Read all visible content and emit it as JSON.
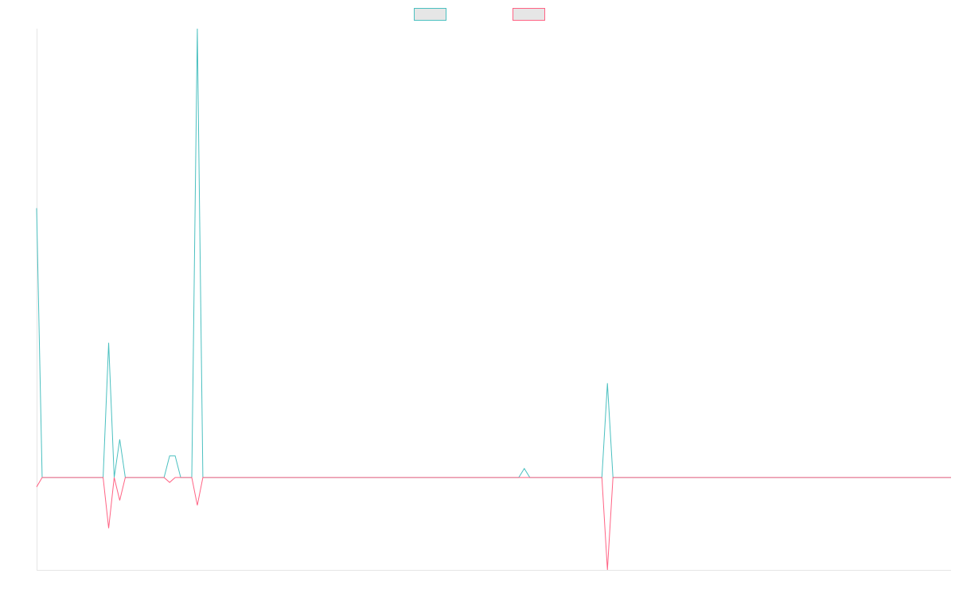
{
  "chart_data": {
    "type": "line",
    "xlim": [
      0,
      165
    ],
    "ylim": [
      -20.6,
      100
    ],
    "series": [
      {
        "color": "#4bc0c0",
        "values": [
          60,
          0,
          0,
          0,
          0,
          0,
          0,
          0,
          0,
          0,
          0,
          0,
          0,
          30,
          0,
          8.5,
          0,
          0,
          0,
          0,
          0,
          0,
          0,
          0,
          4.8,
          4.8,
          0,
          0,
          0,
          100,
          0,
          0,
          0,
          0,
          0,
          0,
          0,
          0,
          0,
          0,
          0,
          0,
          0,
          0,
          0,
          0,
          0,
          0,
          0,
          0,
          0,
          0,
          0,
          0,
          0,
          0,
          0,
          0,
          0,
          0,
          0,
          0,
          0,
          0,
          0,
          0,
          0,
          0,
          0,
          0,
          0,
          0,
          0,
          0,
          0,
          0,
          0,
          0,
          0,
          0,
          0,
          0,
          0,
          0,
          0,
          0,
          0,
          0,
          2,
          0,
          0,
          0,
          0,
          0,
          0,
          0,
          0,
          0,
          0,
          0,
          0,
          0,
          0,
          21,
          0,
          0,
          0,
          0,
          0,
          0,
          0,
          0,
          0,
          0,
          0,
          0,
          0,
          0,
          0,
          0,
          0,
          0,
          0,
          0,
          0,
          0,
          0,
          0,
          0,
          0,
          0,
          0,
          0,
          0,
          0,
          0,
          0,
          0,
          0,
          0,
          0,
          0,
          0,
          0,
          0,
          0,
          0,
          0,
          0,
          0,
          0,
          0,
          0,
          0,
          0,
          0,
          0,
          0,
          0,
          0,
          0,
          0,
          0,
          0,
          0,
          0
        ]
      },
      {
        "color": "#ff6384",
        "values": [
          -2.1,
          0,
          0,
          0,
          0,
          0,
          0,
          0,
          0,
          0,
          0,
          0,
          0,
          -11.3,
          0,
          -5.1,
          0,
          0,
          0,
          0,
          0,
          0,
          0,
          0,
          -1.1,
          0,
          0,
          0,
          0,
          -6.2,
          0,
          0,
          0,
          0,
          0,
          0,
          0,
          0,
          0,
          0,
          0,
          0,
          0,
          0,
          0,
          0,
          0,
          0,
          0,
          0,
          0,
          0,
          0,
          0,
          0,
          0,
          0,
          0,
          0,
          0,
          0,
          0,
          0,
          0,
          0,
          0,
          0,
          0,
          0,
          0,
          0,
          0,
          0,
          0,
          0,
          0,
          0,
          0,
          0,
          0,
          0,
          0,
          0,
          0,
          0,
          0,
          0,
          0,
          0,
          0,
          0,
          0,
          0,
          0,
          0,
          0,
          0,
          0,
          0,
          0,
          0,
          0,
          0,
          -20.6,
          0,
          0,
          0,
          0,
          0,
          0,
          0,
          0,
          0,
          0,
          0,
          0,
          0,
          0,
          0,
          0,
          0,
          0,
          0,
          0,
          0,
          0,
          0,
          0,
          0,
          0,
          0,
          0,
          0,
          0,
          0,
          0,
          0,
          0,
          0,
          0,
          0,
          0,
          0,
          0,
          0,
          0,
          0,
          0,
          0,
          0,
          0,
          0,
          0,
          0,
          0,
          0,
          0,
          0,
          0,
          0,
          0,
          0,
          0,
          0,
          0,
          0
        ]
      }
    ],
    "legend": "top"
  }
}
